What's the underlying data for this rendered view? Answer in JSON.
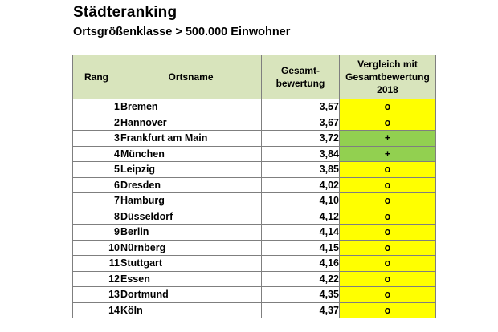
{
  "title": "Städteranking",
  "subtitle": "Ortsgrößenklasse > 500.000 Einwohner",
  "colors": {
    "header_bg": "#d8e4bc",
    "unchanged": "#ffff00",
    "improved": "#92d050",
    "border": "#7f7f7f"
  },
  "table": {
    "headers": {
      "rang": "Rang",
      "ortsname": "Ortsname",
      "gesamt_line1": "Gesamt-",
      "gesamt_line2": "bewertung",
      "vergleich_line1": "Vergleich mit",
      "vergleich_line2": "Gesamtbewertung",
      "vergleich_line3": "2018"
    },
    "rows": [
      {
        "rang": "1",
        "ort": "Bremen",
        "bewertung": "3,57",
        "vergleich": "o",
        "status": "same"
      },
      {
        "rang": "2",
        "ort": "Hannover",
        "bewertung": "3,67",
        "vergleich": "o",
        "status": "same"
      },
      {
        "rang": "3",
        "ort": "Frankfurt am Main",
        "bewertung": "3,72",
        "vergleich": "+",
        "status": "better"
      },
      {
        "rang": "4",
        "ort": "München",
        "bewertung": "3,84",
        "vergleich": "+",
        "status": "better"
      },
      {
        "rang": "5",
        "ort": "Leipzig",
        "bewertung": "3,85",
        "vergleich": "o",
        "status": "same"
      },
      {
        "rang": "6",
        "ort": "Dresden",
        "bewertung": "4,02",
        "vergleich": "o",
        "status": "same"
      },
      {
        "rang": "7",
        "ort": "Hamburg",
        "bewertung": "4,10",
        "vergleich": "o",
        "status": "same"
      },
      {
        "rang": "8",
        "ort": "Düsseldorf",
        "bewertung": "4,12",
        "vergleich": "o",
        "status": "same"
      },
      {
        "rang": "9",
        "ort": "Berlin",
        "bewertung": "4,14",
        "vergleich": "o",
        "status": "same"
      },
      {
        "rang": "10",
        "ort": "Nürnberg",
        "bewertung": "4,15",
        "vergleich": "o",
        "status": "same"
      },
      {
        "rang": "11",
        "ort": "Stuttgart",
        "bewertung": "4,16",
        "vergleich": "o",
        "status": "same"
      },
      {
        "rang": "12",
        "ort": "Essen",
        "bewertung": "4,22",
        "vergleich": "o",
        "status": "same"
      },
      {
        "rang": "13",
        "ort": "Dortmund",
        "bewertung": "4,35",
        "vergleich": "o",
        "status": "same"
      },
      {
        "rang": "14",
        "ort": "Köln",
        "bewertung": "4,37",
        "vergleich": "o",
        "status": "same"
      }
    ]
  }
}
